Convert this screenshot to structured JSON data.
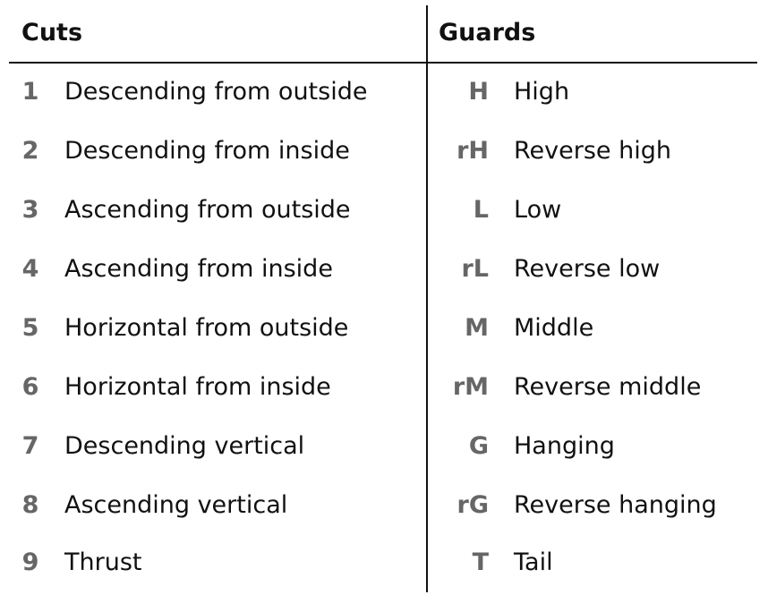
{
  "headers": {
    "cuts": "Cuts",
    "guards": "Guards"
  },
  "rows": [
    {
      "num": "1",
      "cut": "Descending from outside",
      "code": "H",
      "guard": "High"
    },
    {
      "num": "2",
      "cut": "Descending from inside",
      "code": "rH",
      "guard": "Reverse high"
    },
    {
      "num": "3",
      "cut": "Ascending from outside",
      "code": "L",
      "guard": "Low"
    },
    {
      "num": "4",
      "cut": "Ascending from inside",
      "code": "rL",
      "guard": "Reverse low"
    },
    {
      "num": "5",
      "cut": "Horizontal from outside",
      "code": "M",
      "guard": "Middle"
    },
    {
      "num": "6",
      "cut": "Horizontal from inside",
      "code": "rM",
      "guard": "Reverse middle"
    },
    {
      "num": "7",
      "cut": "Descending vertical",
      "code": "G",
      "guard": "Hanging"
    },
    {
      "num": "8",
      "cut": "Ascending vertical",
      "code": "rG",
      "guard": "Reverse hanging"
    },
    {
      "num": "9",
      "cut": "Thrust",
      "code": "T",
      "guard": "Tail"
    }
  ],
  "colors": {
    "text": "#111111",
    "index": "#666666",
    "rule": "#111111"
  }
}
